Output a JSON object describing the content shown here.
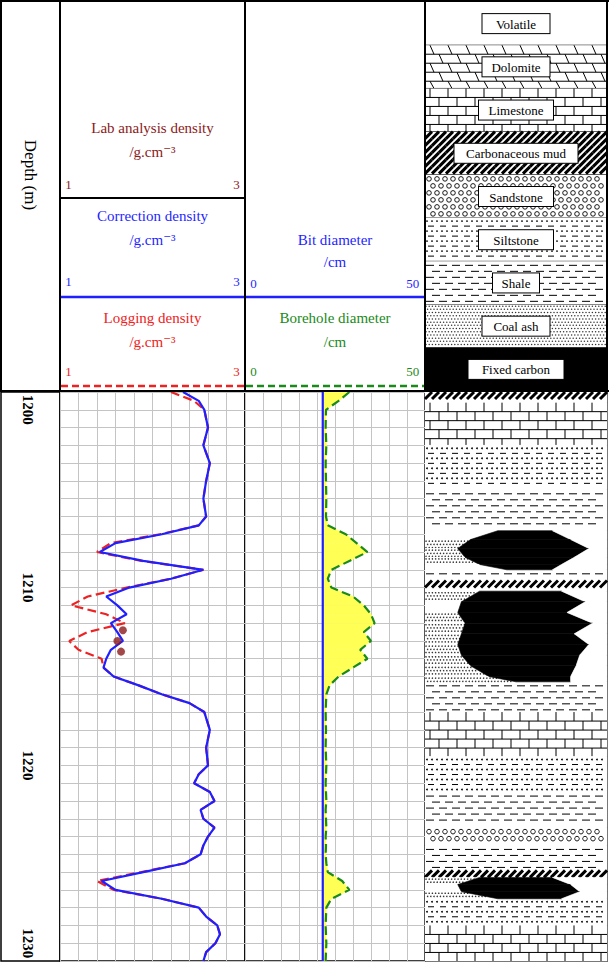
{
  "chart_data": {
    "type": "well_log",
    "depth_label": "Depth (m)",
    "ylim": [
      1199,
      1231
    ],
    "yticks": [
      1200,
      1210,
      1220,
      1230
    ],
    "grid": true,
    "tracks": [
      {
        "type": "line",
        "xlim": [
          1,
          3
        ],
        "xticks": [
          1,
          3
        ],
        "series": [
          {
            "name": "Lab analysis density",
            "unit": "/g.cm⁻³",
            "type": "scatter",
            "marker": "circle",
            "color": "#8b1a1a",
            "depth": [
              1212.4,
              1213,
              1213.6
            ],
            "values": [
              1.68,
              1.62,
              1.66
            ]
          },
          {
            "name": "Correction density",
            "unit": "/g.cm⁻³",
            "type": "line",
            "line_style": "solid",
            "color": "#1f1fff",
            "depth": [
              1199,
              1199.5,
              1200,
              1201,
              1202,
              1203,
              1204,
              1205,
              1206,
              1206.5,
              1207,
              1207.5,
              1208,
              1208.5,
              1209,
              1209.5,
              1210,
              1210.5,
              1211,
              1211.5,
              1212,
              1212.5,
              1213,
              1213.5,
              1214,
              1214.5,
              1215,
              1215.5,
              1216,
              1216.5,
              1217,
              1218,
              1219,
              1220,
              1220.5,
              1221,
              1221.5,
              1222,
              1222.5,
              1223,
              1223.5,
              1224,
              1224.5,
              1225,
              1225.5,
              1226,
              1226.5,
              1227,
              1227.5,
              1228,
              1228.5,
              1229,
              1229.5,
              1230,
              1230.5,
              1231
            ],
            "values": [
              2.33,
              2.5,
              2.56,
              2.6,
              2.55,
              2.62,
              2.58,
              2.55,
              2.58,
              2.5,
              2.1,
              1.6,
              1.43,
              1.9,
              2.55,
              2.2,
              1.75,
              1.5,
              1.62,
              1.72,
              1.55,
              1.62,
              1.68,
              1.55,
              1.5,
              1.47,
              1.58,
              1.85,
              2.1,
              2.4,
              2.56,
              2.62,
              2.58,
              2.6,
              2.5,
              2.45,
              2.62,
              2.67,
              2.52,
              2.55,
              2.67,
              2.6,
              2.55,
              2.52,
              2.35,
              1.9,
              1.45,
              1.6,
              2.1,
              2.5,
              2.58,
              2.7,
              2.73,
              2.68,
              2.58,
              2.55
            ]
          },
          {
            "name": "Logging density",
            "unit": "/g.cm⁻³",
            "type": "line",
            "line_style": "dashed",
            "color": "#ee2222",
            "depth": [
              1199,
              1199.5,
              1200,
              1201,
              1202,
              1203,
              1204,
              1205,
              1206,
              1206.5,
              1207,
              1207.5,
              1208,
              1208.5,
              1209,
              1209.5,
              1210,
              1210.5,
              1211,
              1211.5,
              1212,
              1212.5,
              1213,
              1213.5,
              1214,
              1214.5,
              1215,
              1215.5,
              1216,
              1216.5,
              1217,
              1218,
              1219,
              1220,
              1220.5,
              1221,
              1221.5,
              1222,
              1222.5,
              1223,
              1223.5,
              1224,
              1224.5,
              1225,
              1225.5,
              1226,
              1226.5,
              1227,
              1227.5,
              1228,
              1228.5,
              1229,
              1229.5,
              1230,
              1230.5,
              1231
            ],
            "values": [
              2.2,
              2.45,
              2.56,
              2.6,
              2.55,
              2.62,
              2.58,
              2.55,
              2.58,
              2.5,
              2.08,
              1.55,
              1.4,
              1.88,
              2.55,
              2.2,
              1.72,
              1.3,
              1.12,
              1.5,
              1.7,
              1.3,
              1.1,
              1.2,
              1.45,
              1.47,
              1.58,
              1.85,
              2.1,
              2.4,
              2.56,
              2.62,
              2.58,
              2.6,
              2.5,
              2.45,
              2.62,
              2.67,
              2.52,
              2.55,
              2.67,
              2.6,
              2.55,
              2.52,
              2.35,
              1.88,
              1.4,
              1.58,
              2.1,
              2.5,
              2.58,
              2.7,
              2.73,
              2.68,
              2.58,
              2.55
            ]
          }
        ]
      },
      {
        "type": "line",
        "xlim": [
          0,
          50
        ],
        "xticks": [
          0,
          50
        ],
        "series": [
          {
            "name": "Bit diameter",
            "unit": "/cm",
            "type": "line",
            "line_style": "solid",
            "color": "#1f1fff",
            "depth": [
              1199,
              1199.5,
              1200,
              1201,
              1202,
              1203,
              1204,
              1205,
              1206,
              1206.5,
              1207,
              1207.5,
              1208,
              1208.5,
              1209,
              1209.5,
              1210,
              1210.5,
              1211,
              1211.5,
              1212,
              1212.5,
              1213,
              1213.5,
              1214,
              1214.5,
              1215,
              1215.5,
              1216,
              1216.5,
              1217,
              1218,
              1219,
              1220,
              1220.5,
              1221,
              1221.5,
              1222,
              1222.5,
              1223,
              1223.5,
              1224,
              1224.5,
              1225,
              1225.5,
              1226,
              1226.5,
              1227,
              1227.5,
              1228,
              1228.5,
              1229,
              1229.5,
              1230,
              1230.5,
              1231
            ],
            "values": [
              21.6,
              21.6,
              21.6,
              21.6,
              21.6,
              21.6,
              21.6,
              21.6,
              21.6,
              21.6,
              21.6,
              21.6,
              21.6,
              21.6,
              21.6,
              21.6,
              21.6,
              21.6,
              21.6,
              21.6,
              21.6,
              21.6,
              21.6,
              21.6,
              21.6,
              21.6,
              21.6,
              21.6,
              21.6,
              21.6,
              21.6,
              21.6,
              21.6,
              21.6,
              21.6,
              21.6,
              21.6,
              21.6,
              21.6,
              21.6,
              21.6,
              21.6,
              21.6,
              21.6,
              21.6,
              21.6,
              21.6,
              21.6,
              21.6,
              21.6,
              21.6,
              21.6,
              21.6,
              21.6,
              21.6,
              21.6
            ]
          },
          {
            "name": "Borehole diameter",
            "unit": "/cm",
            "type": "area",
            "line_style": "dashed",
            "color": "#1a8a1a",
            "depth": [
              1199,
              1199.5,
              1200,
              1201,
              1202,
              1203,
              1204,
              1205,
              1206,
              1206.5,
              1207,
              1207.5,
              1208,
              1208.5,
              1209,
              1209.5,
              1210,
              1210.5,
              1211,
              1211.5,
              1212,
              1212.5,
              1213,
              1213.5,
              1214,
              1214.5,
              1215,
              1215.5,
              1216,
              1216.5,
              1217,
              1218,
              1219,
              1220,
              1220.5,
              1221,
              1221.5,
              1222,
              1222.5,
              1223,
              1223.5,
              1224,
              1224.5,
              1225,
              1225.5,
              1226,
              1226.5,
              1227,
              1227.5,
              1228,
              1228.5,
              1229,
              1229.5,
              1230,
              1230.5,
              1231
            ],
            "values": [
              29,
              26,
              22.5,
              22.4,
              22.6,
              22.4,
              22.5,
              22.6,
              22.5,
              23,
              28,
              31,
              34,
              29,
              24,
              23,
              24,
              30,
              33,
              35,
              36,
              33,
              35,
              32,
              34,
              30,
              26,
              23.5,
              22.6,
              22.5,
              22.4,
              22.5,
              22.4,
              22.6,
              22.5,
              22.4,
              22.5,
              22.6,
              22.4,
              22.5,
              22.6,
              22.4,
              22.5,
              22.4,
              22.6,
              23,
              27,
              29,
              24,
              22.6,
              22.5,
              22.4,
              22.5,
              22.6,
              22.5,
              22.4
            ]
          }
        ]
      },
      {
        "type": "lithology",
        "xlim": [
          0,
          100
        ],
        "lithologies": [
          "Volatile",
          "Dolomite",
          "Limestone",
          "Carbonaceous mud",
          "Sandstone",
          "Siltstone",
          "Shale",
          "Coal ash",
          "Fixed carbon"
        ],
        "intervals": [
          {
            "top": 1199,
            "bottom": 1199.6,
            "lithology": "Carbonaceous mud"
          },
          {
            "top": 1199.6,
            "bottom": 1202,
            "lithology": "Limestone"
          },
          {
            "top": 1202,
            "bottom": 1204.5,
            "lithology": "Siltstone"
          },
          {
            "top": 1204.5,
            "bottom": 1206.8,
            "lithology": "Shale"
          },
          {
            "top": 1209,
            "bottom": 1209.6,
            "lithology": "Shale"
          },
          {
            "top": 1209.6,
            "bottom": 1210.2,
            "lithology": "Carbonaceous mud"
          },
          {
            "top": 1215.3,
            "bottom": 1217,
            "lithology": "Shale"
          },
          {
            "top": 1217,
            "bottom": 1219.5,
            "lithology": "Limestone"
          },
          {
            "top": 1219.5,
            "bottom": 1221.5,
            "lithology": "Siltstone"
          },
          {
            "top": 1221.5,
            "bottom": 1223.5,
            "lithology": "Shale"
          },
          {
            "top": 1223.5,
            "bottom": 1224.5,
            "lithology": "Sandstone"
          },
          {
            "top": 1224.5,
            "bottom": 1225.9,
            "lithology": "Shale"
          },
          {
            "top": 1225.9,
            "bottom": 1226.3,
            "lithology": "Carbonaceous mud"
          },
          {
            "top": 1227.5,
            "bottom": 1229,
            "lithology": "Siltstone"
          },
          {
            "top": 1229,
            "bottom": 1231,
            "lithology": "Limestone"
          }
        ],
        "components": [
          "Coal ash",
          "Fixed carbon",
          "Volatile"
        ],
        "coal_seams": [
          {
            "depth": [
              1206.8,
              1207.3,
              1207.8,
              1208.3,
              1208.7,
              1209
            ],
            "fractions": [
              [
                40,
                30,
                30
              ],
              [
                25,
                55,
                20
              ],
              [
                18,
                72,
                10
              ],
              [
                22,
                60,
                18
              ],
              [
                30,
                45,
                25
              ],
              [
                45,
                25,
                30
              ]
            ]
          },
          {
            "depth": [
              1210.2,
              1210.8,
              1211.4,
              1212,
              1212.6,
              1213.2,
              1213.8,
              1214.4,
              1215,
              1215.3
            ],
            "fractions": [
              [
                30,
                45,
                25
              ],
              [
                20,
                68,
                12
              ],
              [
                18,
                60,
                22
              ],
              [
                22,
                70,
                8
              ],
              [
                20,
                62,
                18
              ],
              [
                18,
                72,
                10
              ],
              [
                20,
                65,
                15
              ],
              [
                25,
                58,
                17
              ],
              [
                35,
                45,
                20
              ],
              [
                50,
                30,
                20
              ]
            ]
          },
          {
            "depth": [
              1226.3,
              1226.7,
              1227.1,
              1227.5
            ],
            "fractions": [
              [
                30,
                40,
                30
              ],
              [
                18,
                62,
                20
              ],
              [
                20,
                65,
                15
              ],
              [
                40,
                35,
                25
              ]
            ]
          }
        ]
      }
    ]
  }
}
